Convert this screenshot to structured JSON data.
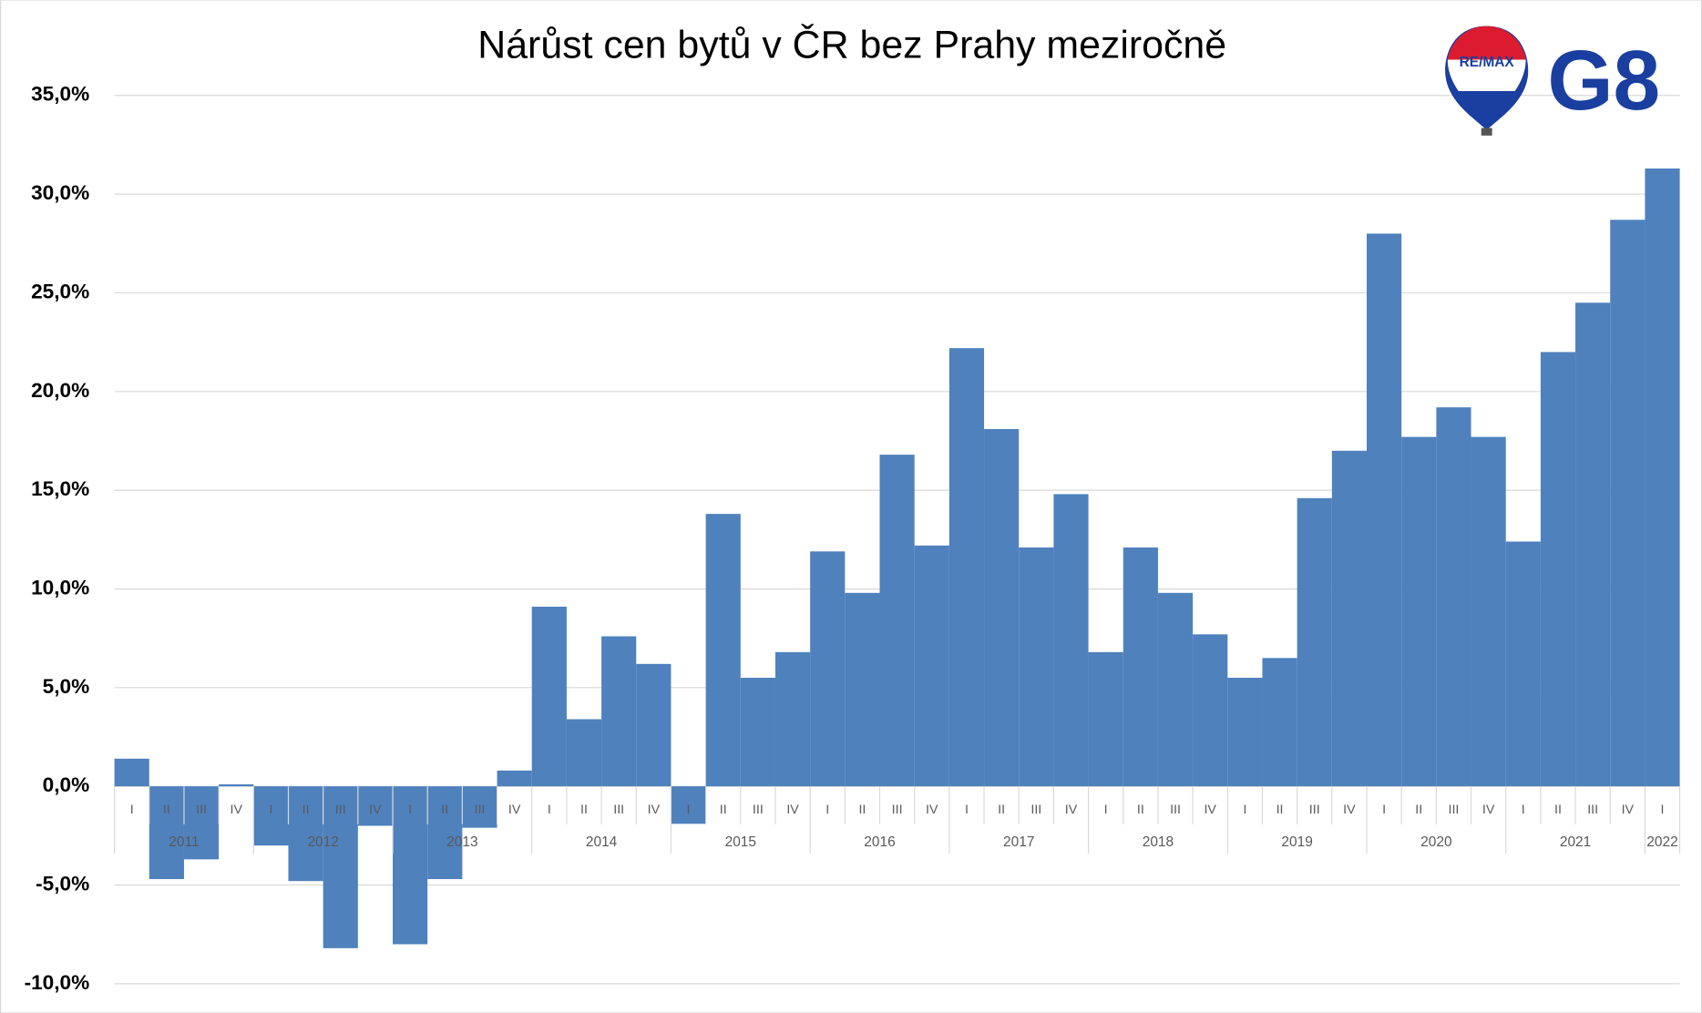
{
  "chart_data": {
    "type": "bar",
    "title": "Nárůst cen bytů v ČR bez Prahy meziročně",
    "categories": [
      "I",
      "II",
      "III",
      "IV",
      "I",
      "II",
      "III",
      "IV",
      "I",
      "II",
      "III",
      "IV",
      "I",
      "II",
      "III",
      "IV",
      "I",
      "II",
      "III",
      "IV",
      "I",
      "II",
      "III",
      "IV",
      "I",
      "II",
      "III",
      "IV",
      "I",
      "II",
      "III",
      "IV",
      "I",
      "II",
      "III",
      "IV",
      "I",
      "II",
      "III",
      "IV",
      "I",
      "II",
      "III",
      "IV",
      "I"
    ],
    "years": [
      "2011",
      null,
      null,
      null,
      "2012",
      null,
      null,
      null,
      "2013",
      null,
      null,
      null,
      "2014",
      null,
      null,
      null,
      "2015",
      null,
      null,
      null,
      "2016",
      null,
      null,
      null,
      "2017",
      null,
      null,
      null,
      "2018",
      null,
      null,
      null,
      "2019",
      null,
      null,
      null,
      "2020",
      null,
      null,
      null,
      "2021",
      null,
      null,
      null,
      "2022"
    ],
    "values": [
      1.4,
      -4.7,
      -3.7,
      0.1,
      -3.0,
      -4.8,
      -8.2,
      -2.0,
      -8.0,
      -4.7,
      -2.1,
      0.8,
      9.1,
      3.4,
      7.6,
      6.2,
      -1.9,
      13.8,
      5.5,
      6.8,
      11.9,
      9.8,
      16.8,
      12.2,
      22.2,
      18.1,
      12.1,
      14.8,
      6.8,
      12.1,
      9.8,
      7.7,
      5.5,
      6.5,
      14.6,
      17.0,
      28.0,
      17.7,
      19.2,
      17.7,
      12.4,
      22.0,
      24.5,
      28.7,
      31.3
    ],
    "color": "#4f81bd",
    "ylim": [
      -10,
      35
    ],
    "yticks": [
      {
        "value": -10,
        "label": "-10,0%"
      },
      {
        "value": -5,
        "label": "-5,0%"
      },
      {
        "value": 0,
        "label": "0,0%"
      },
      {
        "value": 5,
        "label": "5,0%"
      },
      {
        "value": 10,
        "label": "10,0%"
      },
      {
        "value": 15,
        "label": "15,0%"
      },
      {
        "value": 20,
        "label": "20,0%"
      },
      {
        "value": 25,
        "label": "25,0%"
      },
      {
        "value": 30,
        "label": "30,0%"
      },
      {
        "value": 35,
        "label": "35,0%"
      }
    ],
    "grid": true
  },
  "logo": {
    "balloon_text": "RE/MAX",
    "brand": "G8"
  }
}
